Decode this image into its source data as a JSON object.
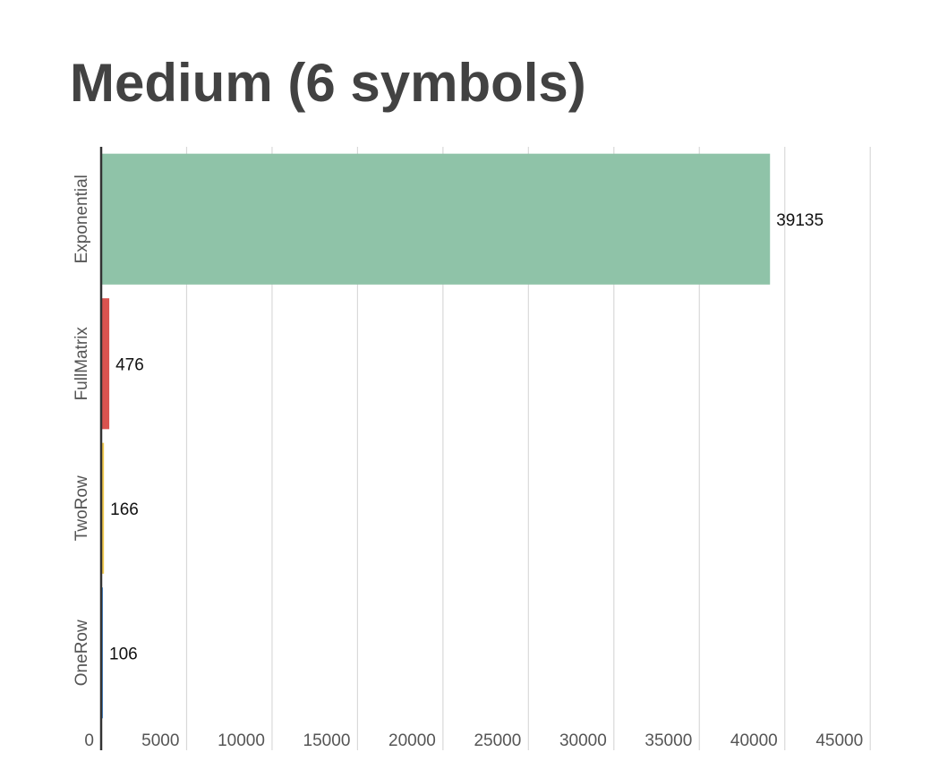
{
  "title": "Medium (6 symbols)",
  "chart_data": {
    "type": "bar",
    "orientation": "horizontal",
    "title": "Medium (6 symbols)",
    "xlabel": "",
    "ylabel": "",
    "categories": [
      "Exponential",
      "FullMatrix",
      "TwoRow",
      "OneRow"
    ],
    "values": [
      39135,
      476,
      166,
      106
    ],
    "data_labels": [
      "39135",
      "476",
      "166",
      "106"
    ],
    "colors": [
      "#8fc3a8",
      "#d9534f",
      "#f2c94c",
      "#4a90d9"
    ],
    "xlim": [
      0,
      45000
    ],
    "xticks": [
      0,
      5000,
      10000,
      15000,
      20000,
      25000,
      30000,
      35000,
      40000,
      45000
    ],
    "xtick_labels": [
      "0",
      "5000",
      "10000",
      "15000",
      "20000",
      "25000",
      "30000",
      "35000",
      "40000",
      "45000"
    ],
    "grid": "vertical",
    "legend": "none"
  }
}
